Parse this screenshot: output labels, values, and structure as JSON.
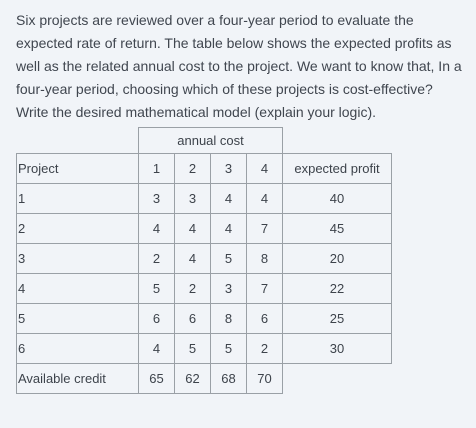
{
  "question": "Six projects are reviewed over a four-year period to evaluate the expected rate of return. The table below shows the expected profits as well as the related annual cost to the project. We want to know that, In a four-year period, choosing which of these projects is cost-effective? Write the desired mathematical model (explain your logic).",
  "table": {
    "group_header": "annual cost",
    "project_header": "Project",
    "year_headers": [
      "1",
      "2",
      "3",
      "4"
    ],
    "profit_header": "expected profit",
    "rows": [
      {
        "project": "1",
        "costs": [
          "3",
          "3",
          "4",
          "4"
        ],
        "profit": "40"
      },
      {
        "project": "2",
        "costs": [
          "4",
          "4",
          "4",
          "7"
        ],
        "profit": "45"
      },
      {
        "project": "3",
        "costs": [
          "2",
          "4",
          "5",
          "8"
        ],
        "profit": "20"
      },
      {
        "project": "4",
        "costs": [
          "5",
          "2",
          "3",
          "7"
        ],
        "profit": "22"
      },
      {
        "project": "5",
        "costs": [
          "6",
          "6",
          "8",
          "6"
        ],
        "profit": "25"
      },
      {
        "project": "6",
        "costs": [
          "4",
          "5",
          "5",
          "2"
        ],
        "profit": "30"
      }
    ],
    "credit_label": "Available credit",
    "credit_values": [
      "65",
      "62",
      "68",
      "70"
    ]
  }
}
